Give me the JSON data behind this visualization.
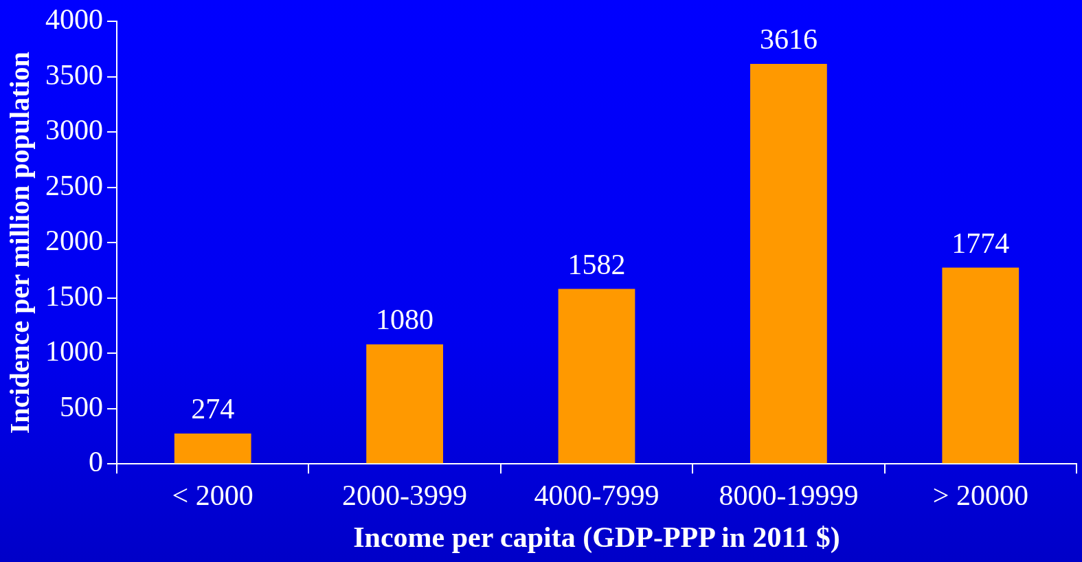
{
  "chart_data": {
    "type": "bar",
    "xlabel": "Income per capita (GDP-PPP in 2011 $)",
    "ylabel": "Incidence per million population",
    "categories": [
      "< 2000",
      "2000-3999",
      "4000-7999",
      "8000-19999",
      "> 20000"
    ],
    "values": [
      274,
      1080,
      1582,
      3616,
      1774
    ],
    "color": "#ff9900",
    "ylim": [
      0,
      4000
    ],
    "yticks": [
      0,
      500,
      1000,
      1500,
      2000,
      2500,
      3000,
      3500,
      4000
    ],
    "data_labels": true
  }
}
